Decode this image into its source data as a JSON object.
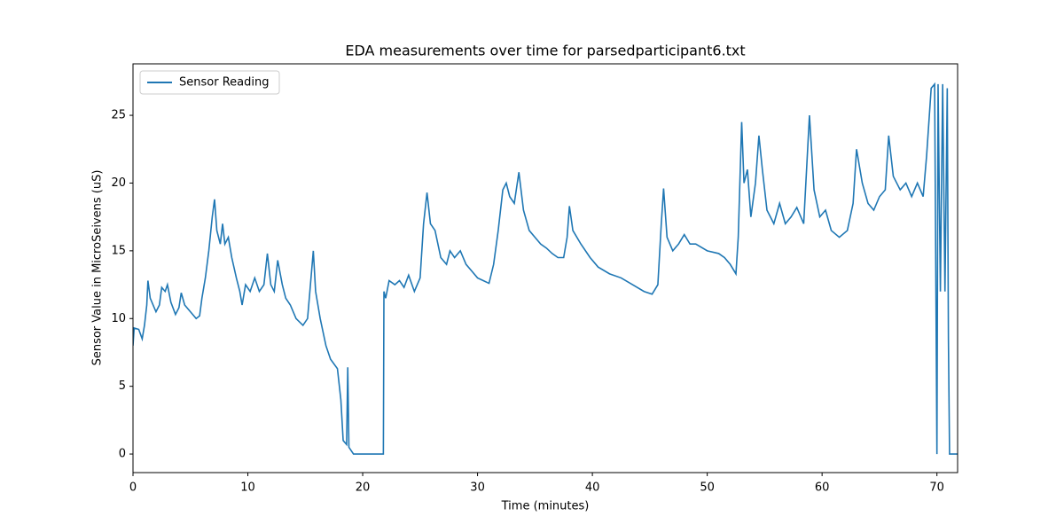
{
  "chart_data": {
    "type": "line",
    "title": "EDA measurements over time for parsedparticipant6.txt",
    "x_label": "Time (minutes)",
    "y_label": "Sensor Value in MicroSeivens (uS)",
    "xlim": [
      0,
      71.8
    ],
    "ylim": [
      -1.37,
      28.8
    ],
    "xticks": [
      0,
      10,
      20,
      30,
      40,
      50,
      60,
      70
    ],
    "yticks": [
      0,
      5,
      10,
      15,
      20,
      25
    ],
    "legend": "upper left",
    "x": [
      0,
      0.1,
      0.5,
      0.8,
      1.0,
      1.2,
      1.3,
      1.5,
      2.0,
      2.3,
      2.5,
      2.8,
      3.0,
      3.3,
      3.7,
      4.0,
      4.2,
      4.5,
      5.0,
      5.5,
      5.8,
      6.0,
      6.3,
      6.6,
      6.9,
      7.1,
      7.3,
      7.6,
      7.8,
      8.0,
      8.3,
      8.6,
      9.0,
      9.3,
      9.5,
      9.8,
      10.2,
      10.6,
      11.0,
      11.4,
      11.7,
      12.0,
      12.3,
      12.6,
      13.0,
      13.3,
      13.7,
      14.2,
      14.8,
      15.2,
      15.5,
      15.7,
      15.9,
      16.3,
      16.8,
      17.2,
      17.8,
      18.1,
      18.3,
      18.6,
      18.7,
      18.8,
      19.2,
      21.8,
      21.85,
      22.0,
      22.3,
      22.8,
      23.2,
      23.6,
      24.0,
      24.5,
      25.0,
      25.3,
      25.6,
      25.9,
      26.3,
      26.8,
      27.3,
      27.6,
      28.0,
      28.5,
      29.0,
      29.5,
      30.0,
      30.5,
      31.0,
      31.4,
      31.8,
      32.2,
      32.5,
      32.8,
      33.2,
      33.6,
      34.0,
      34.5,
      35.0,
      35.5,
      36.0,
      36.5,
      37.0,
      37.5,
      37.8,
      38.0,
      38.3,
      39.0,
      39.8,
      40.5,
      41.5,
      42.5,
      43.5,
      44.5,
      45.2,
      45.7,
      46.0,
      46.2,
      46.5,
      47.0,
      47.5,
      48.0,
      48.5,
      49.0,
      50.0,
      51.0,
      51.5,
      52.0,
      52.5,
      52.7,
      53.0,
      53.2,
      53.5,
      53.8,
      54.2,
      54.5,
      54.8,
      55.2,
      55.8,
      56.3,
      56.8,
      57.3,
      57.8,
      58.4,
      58.9,
      59.3,
      59.8,
      60.3,
      60.8,
      61.5,
      62.2,
      62.7,
      63.0,
      63.5,
      64.0,
      64.5,
      65.0,
      65.5,
      65.8,
      66.2,
      66.8,
      67.3,
      67.8,
      68.3,
      68.8,
      69.1,
      69.5,
      69.8,
      70.0,
      70.1,
      70.3,
      70.5,
      70.7,
      70.9,
      71.0,
      71.1,
      71.8
    ],
    "series": [
      {
        "name": "Sensor Reading",
        "color": "#1f77b4",
        "values": [
          8.0,
          9.3,
          9.2,
          8.5,
          9.5,
          11.0,
          12.8,
          11.5,
          10.5,
          11.0,
          12.3,
          12.0,
          12.5,
          11.2,
          10.3,
          10.8,
          11.9,
          11.0,
          10.5,
          10.0,
          10.2,
          11.5,
          13.0,
          15.0,
          17.5,
          18.8,
          16.5,
          15.5,
          17.0,
          15.5,
          16.0,
          14.5,
          13.0,
          12.0,
          11.0,
          12.5,
          12.0,
          13.0,
          12.0,
          12.5,
          14.8,
          12.5,
          12.0,
          14.3,
          12.5,
          11.5,
          11.0,
          10.0,
          9.5,
          10.0,
          13.0,
          15.0,
          12.0,
          10.0,
          8.0,
          7.0,
          6.3,
          4.0,
          1.0,
          0.7,
          6.4,
          0.5,
          0,
          0,
          12.0,
          11.5,
          12.8,
          12.5,
          12.8,
          12.3,
          13.2,
          12.0,
          13.0,
          17.0,
          19.3,
          17.0,
          16.5,
          14.5,
          14.0,
          15.0,
          14.5,
          15.0,
          14.0,
          13.5,
          13.0,
          12.8,
          12.6,
          14.0,
          16.5,
          19.5,
          20.0,
          19.0,
          18.5,
          20.8,
          18.0,
          16.5,
          16.0,
          15.5,
          15.2,
          14.8,
          14.5,
          14.5,
          16.0,
          18.3,
          16.5,
          15.5,
          14.5,
          13.8,
          13.3,
          13.0,
          12.5,
          12.0,
          11.8,
          12.5,
          17.0,
          19.6,
          16.0,
          15.0,
          15.5,
          16.2,
          15.5,
          15.5,
          15.0,
          14.8,
          14.5,
          14.0,
          13.3,
          16.0,
          24.5,
          20.0,
          21.0,
          17.5,
          20.0,
          23.5,
          21.0,
          18.0,
          17.0,
          18.5,
          17.0,
          17.5,
          18.2,
          17.0,
          25.0,
          19.5,
          17.5,
          18.0,
          16.5,
          16.0,
          16.5,
          18.5,
          22.5,
          20.0,
          18.5,
          18.0,
          19.0,
          19.5,
          23.5,
          20.5,
          19.5,
          20.0,
          19.0,
          20.0,
          19.0,
          22.0,
          27.0,
          27.3,
          0,
          27.3,
          12.0,
          27.3,
          12.0,
          27.0,
          8.5,
          0,
          0
        ]
      }
    ]
  }
}
